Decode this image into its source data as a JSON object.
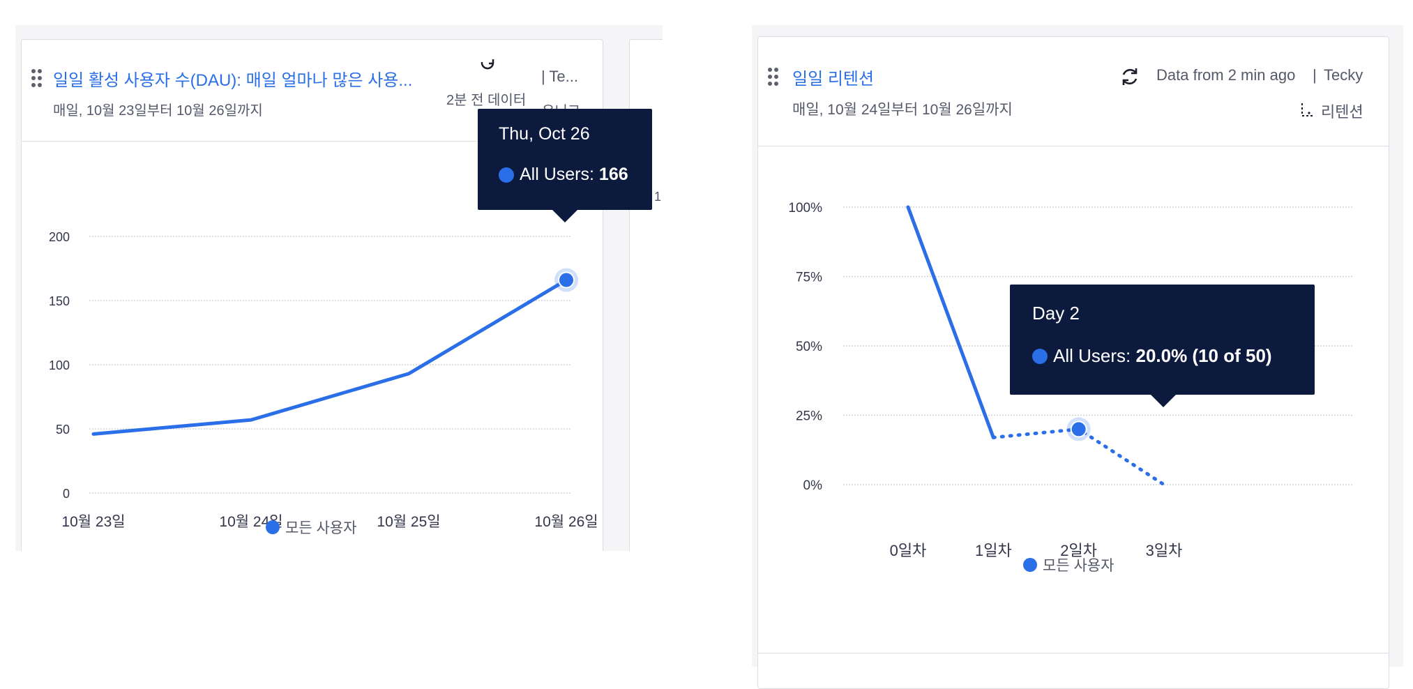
{
  "colors": {
    "accent": "#2a6ee8",
    "tooltip_bg": "#0c1a3d",
    "grid": "#c9cad1",
    "text_muted": "#555869"
  },
  "left_card": {
    "title": "일일 활성 사용자 수(DAU): 매일 얼마나 많은 사용...",
    "subtitle": "매일, 10월 23일부터 10월 26일까지",
    "meta_separator": "| Te...",
    "meta_data_age": "2분 전 데이터",
    "meta_type": "유니크",
    "refresh_icon": "refresh-icon",
    "drag_icon": "drag-handle-icon",
    "peek_label": "1",
    "legend_label": "모든 사용자",
    "tooltip": {
      "title": "Thu, Oct 26",
      "series_label": "All Users: ",
      "value": "166"
    }
  },
  "right_card": {
    "title": "일일 리텐션",
    "subtitle": "매일, 10월 24일부터 10월 26일까지",
    "meta_data_age": "Data from 2 min ago",
    "meta_separator": "|",
    "meta_project": "Tecky",
    "meta_type": "리텐션",
    "refresh_icon": "refresh-icon",
    "retention_icon": "retention-icon",
    "drag_icon": "drag-handle-icon",
    "legend_label": "모든 사용자",
    "tooltip": {
      "title": "Day 2",
      "series_label": "All Users: ",
      "value": "20.0% (10 of 50)"
    }
  },
  "chart_data": [
    {
      "type": "line",
      "categories": [
        "10월 23일",
        "10월 24일",
        "10월 25일",
        "10월 26일"
      ],
      "series": [
        {
          "name": "모든 사용자",
          "values": [
            46,
            57,
            93,
            166
          ]
        }
      ],
      "yticks": [
        0,
        50,
        100,
        150,
        200
      ],
      "ylim": [
        0,
        200
      ],
      "grid": true,
      "legend": "bottom",
      "highlight_index": 3
    },
    {
      "type": "line",
      "categories": [
        "0일차",
        "1일차",
        "2일차",
        "3일차"
      ],
      "series": [
        {
          "name": "모든 사용자",
          "values": [
            100,
            17,
            20,
            0
          ]
        }
      ],
      "yticks": [
        "0%",
        "25%",
        "50%",
        "75%",
        "100%"
      ],
      "ylim": [
        0,
        100
      ],
      "grid": true,
      "legend": "bottom",
      "solid_through_index": 1,
      "highlight_index": 2
    }
  ]
}
